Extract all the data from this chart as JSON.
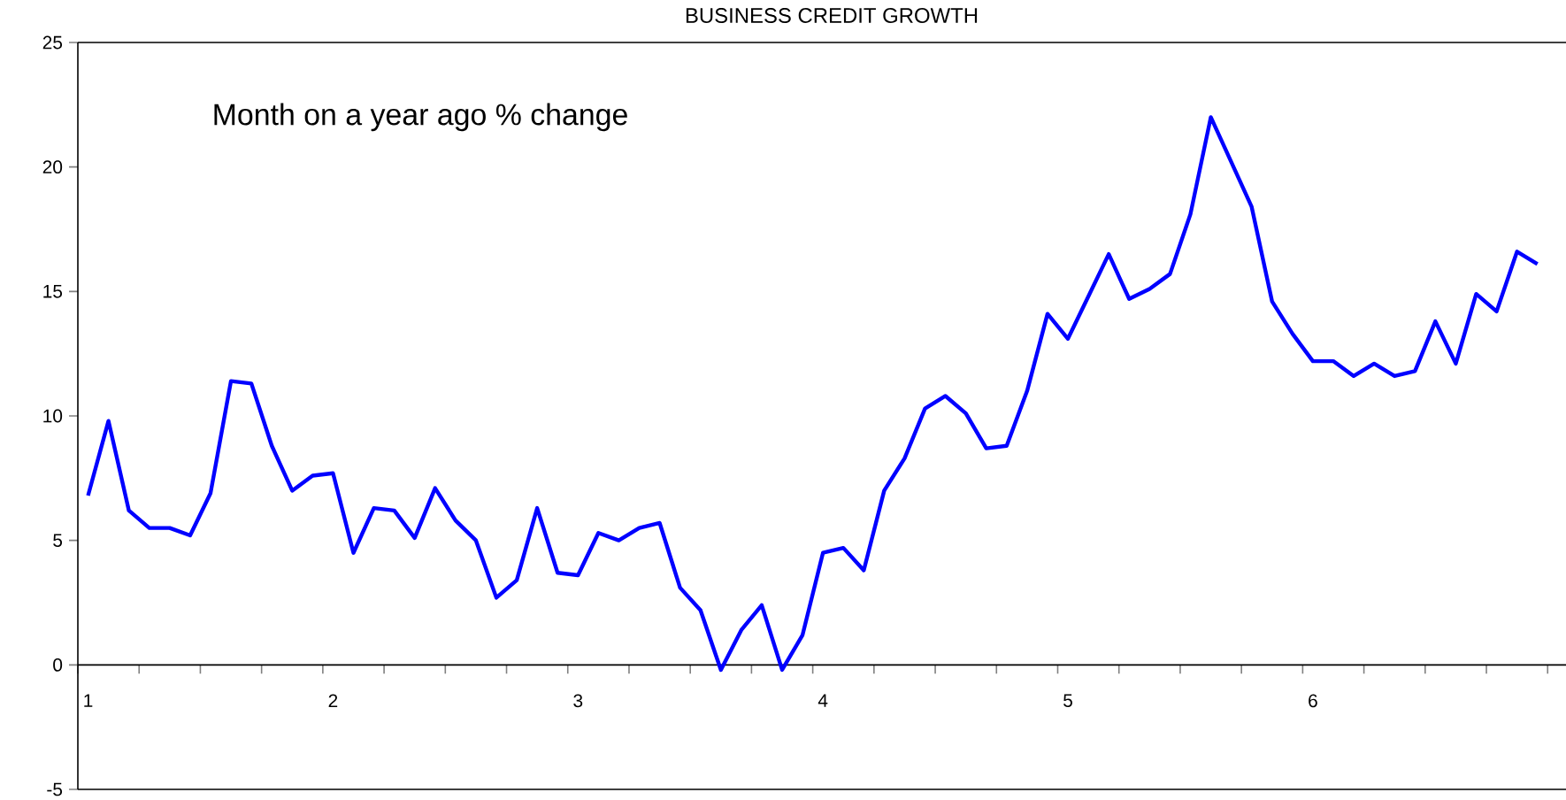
{
  "chart_data": {
    "type": "line",
    "title": "BUSINESS CREDIT GROWTH",
    "annotations": [
      "Month on a year ago % change"
    ],
    "categories": [
      "1",
      null,
      null,
      null,
      null,
      null,
      null,
      null,
      null,
      null,
      null,
      null,
      "2",
      null,
      null,
      null,
      null,
      null,
      null,
      null,
      null,
      null,
      null,
      null,
      "3",
      null,
      null,
      null,
      null,
      null,
      null,
      null,
      null,
      null,
      null,
      null,
      "4",
      null,
      null,
      null,
      null,
      null,
      null,
      null,
      null,
      null,
      null,
      null,
      "5",
      null,
      null,
      null,
      null,
      null,
      null,
      null,
      null,
      null,
      null,
      null,
      "6",
      null,
      null,
      null,
      null,
      null,
      null,
      null,
      null,
      null,
      null,
      null
    ],
    "series": [
      {
        "color": "#0000ff",
        "values": [
          6.8,
          9.8,
          6.2,
          5.5,
          5.5,
          5.2,
          6.9,
          11.4,
          11.3,
          8.8,
          7.0,
          7.6,
          7.7,
          4.5,
          6.3,
          6.2,
          5.1,
          7.1,
          5.8,
          5.0,
          2.7,
          3.4,
          6.3,
          3.7,
          3.6,
          5.3,
          5.0,
          5.5,
          5.7,
          3.1,
          2.2,
          -0.2,
          1.4,
          2.4,
          -0.2,
          1.2,
          4.5,
          4.7,
          3.8,
          7.0,
          8.3,
          10.3,
          10.8,
          10.1,
          8.7,
          8.8,
          11.0,
          14.1,
          13.1,
          14.8,
          16.5,
          14.7,
          15.1,
          15.7,
          18.1,
          22.0,
          20.2,
          18.4,
          14.6,
          13.3,
          12.2,
          12.2,
          11.6,
          12.1,
          11.6,
          11.8,
          13.8,
          12.1,
          14.9,
          14.2,
          16.6,
          16.1
        ]
      }
    ],
    "ylim": [
      -5,
      25
    ],
    "yticks": [
      -5,
      0,
      5,
      10,
      15,
      20,
      25
    ],
    "line_style": "solid"
  }
}
